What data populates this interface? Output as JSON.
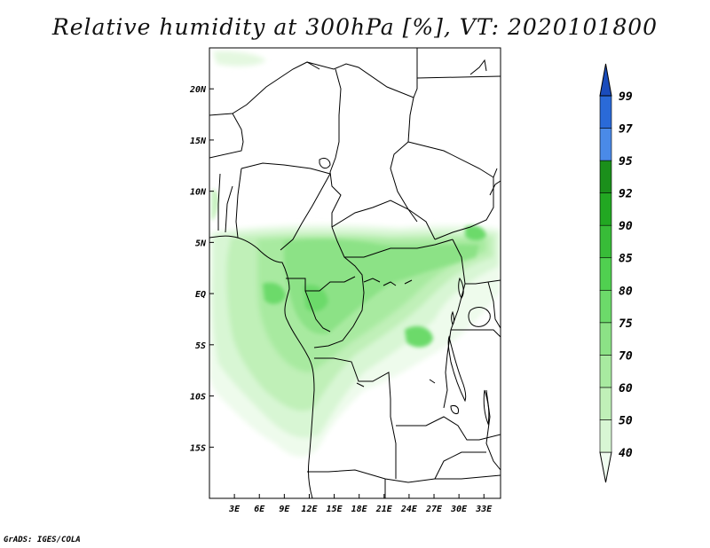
{
  "title": "Relative humidity at 300hPa [%], VT: 2020101800",
  "credit": "GrADS: IGES/COLA",
  "chart_data": {
    "type": "heatmap",
    "variable": "Relative humidity at 300hPa",
    "units": "%",
    "valid_time": "2020101800",
    "lon_range": [
      0,
      35
    ],
    "lat_range": [
      -20,
      24
    ],
    "x_ticks": [
      "3E",
      "6E",
      "9E",
      "12E",
      "15E",
      "18E",
      "21E",
      "24E",
      "27E",
      "30E",
      "33E"
    ],
    "x_tick_values": [
      3,
      6,
      9,
      12,
      15,
      18,
      21,
      24,
      27,
      30,
      33
    ],
    "y_ticks": [
      "20N",
      "15N",
      "10N",
      "5N",
      "EQ",
      "5S",
      "10S",
      "15S"
    ],
    "y_tick_values": [
      20,
      15,
      10,
      5,
      0,
      -5,
      -10,
      -15
    ],
    "colorbar": {
      "levels": [
        "40",
        "50",
        "60",
        "70",
        "75",
        "80",
        "85",
        "90",
        "92",
        "95",
        "97",
        "99"
      ],
      "colors": [
        "#f0fcf0",
        "#d8f6d4",
        "#c0f0b8",
        "#a8eaa0",
        "#8ce286",
        "#6cda6a",
        "#50d050",
        "#38bc38",
        "#22a822",
        "#1b8f1b",
        "#4a8ae8",
        "#2a6ad8",
        "#1a4cbc"
      ]
    }
  }
}
